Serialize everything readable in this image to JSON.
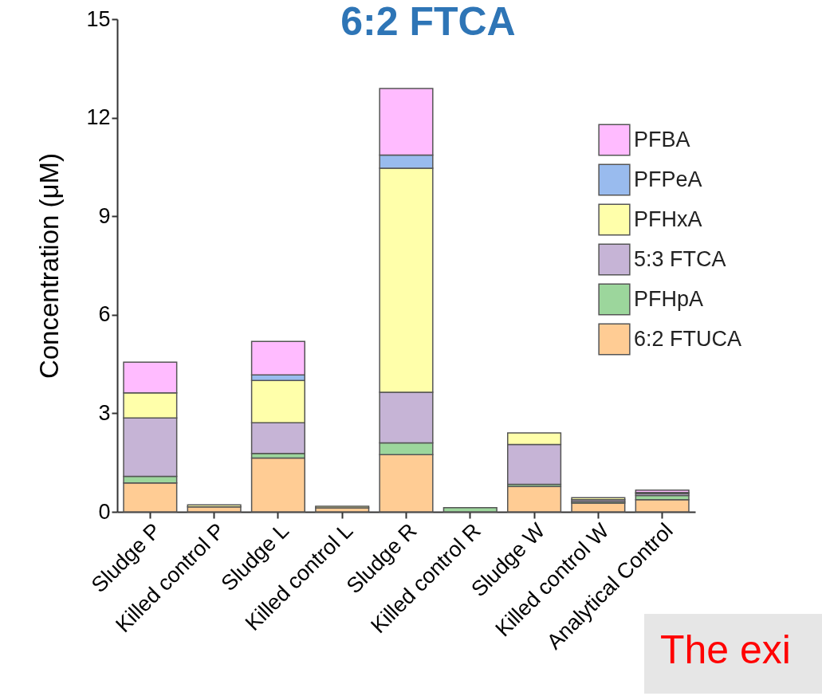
{
  "chart_data": {
    "type": "bar",
    "title": "6:2 FTCA",
    "ylabel": "Concentration (μM)",
    "categories": [
      "Sludge P",
      "Killed control P",
      "Sludge L",
      "Killed control L",
      "Sludge R",
      "Killed control R",
      "Sludge W",
      "Killed control W",
      "Analytical Control"
    ],
    "stacked": true,
    "ylim": [
      0,
      15
    ],
    "yticks": [
      0,
      3,
      6,
      9,
      12,
      15
    ],
    "grid": false,
    "legend": "top right",
    "series": [
      {
        "name": "6:2 FTUCA",
        "color": "#ffcc94",
        "values": [
          0.88,
          0.15,
          1.64,
          0.12,
          1.74,
          null,
          0.77,
          0.27,
          0.37
        ]
      },
      {
        "name": "PFHpA",
        "color": "#9cd69c",
        "values": [
          0.2,
          null,
          0.14,
          null,
          0.36,
          0.13,
          0.07,
          0.04,
          0.13
        ]
      },
      {
        "name": "5:3 FTCA",
        "color": "#c6b4d6",
        "values": [
          1.78,
          null,
          0.93,
          null,
          1.54,
          null,
          1.21,
          0.06,
          0.06
        ]
      },
      {
        "name": "PFHxA",
        "color": "#ffffaa",
        "values": [
          0.76,
          0.06,
          1.29,
          0.05,
          6.82,
          null,
          0.35,
          0.06,
          0.03
        ]
      },
      {
        "name": "PFPeA",
        "color": "#99bbee",
        "values": [
          null,
          null,
          0.17,
          null,
          0.4,
          null,
          null,
          null,
          null
        ]
      },
      {
        "name": "PFBA",
        "color": "#ffbbff",
        "values": [
          0.94,
          null,
          1.02,
          null,
          2.03,
          null,
          null,
          null,
          0.07
        ]
      }
    ],
    "annotations": [
      "The exi"
    ]
  }
}
